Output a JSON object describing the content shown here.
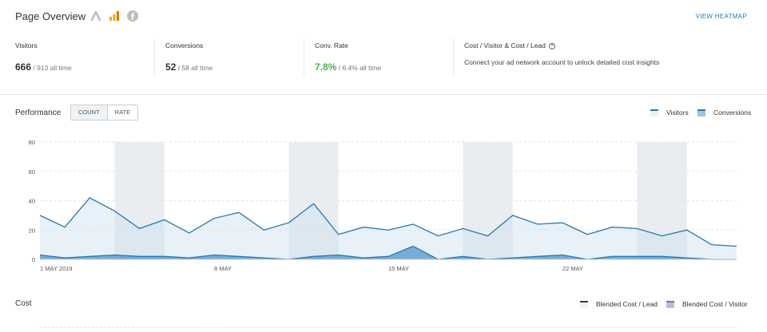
{
  "header": {
    "title": "Page Overview",
    "view_heatmap": "VIEW HEATMAP",
    "icons": [
      "google-ads-icon",
      "analytics-icon",
      "facebook-icon"
    ]
  },
  "stats": [
    {
      "label": "Visitors",
      "value": "666",
      "sub": " / 913 all time"
    },
    {
      "label": "Conversions",
      "value": "52",
      "sub": " / 58 all time"
    },
    {
      "label": "Conv. Rate",
      "value": "7.8%",
      "sub": " / 6.4% all time"
    }
  ],
  "cost": {
    "label": "Cost / Visitor & Cost / Lead",
    "description": "Connect your ad network account to unlock detailed cost insights"
  },
  "performance": {
    "title": "Performance",
    "toggle": [
      "COUNT",
      "RATE"
    ],
    "active_toggle": "COUNT"
  },
  "legend": {
    "visitors": "Visitors",
    "conversions": "Conversions"
  },
  "chart_data": {
    "type": "area",
    "x_start": "1 May 2019",
    "x_ticks": [
      {
        "label": "1 MAY 2019",
        "day": 1
      },
      {
        "label": "8 MAY",
        "day": 8
      },
      {
        "label": "15 MAY",
        "day": 15
      },
      {
        "label": "22 MAY",
        "day": 22
      }
    ],
    "y_ticks": [
      0,
      20,
      40,
      60,
      80
    ],
    "ylim": [
      0,
      80
    ],
    "grid": true,
    "weekend_bands": [
      [
        4,
        6
      ],
      [
        11,
        13
      ],
      [
        18,
        20
      ],
      [
        25,
        27
      ]
    ],
    "series": [
      {
        "name": "Visitors",
        "color": "#2878b0",
        "values": [
          30,
          22,
          42,
          33,
          21,
          27,
          18,
          28,
          32,
          20,
          25,
          38,
          17,
          22,
          20,
          24,
          16,
          21,
          16,
          30,
          24,
          25,
          17,
          22,
          21,
          16,
          20,
          10,
          9
        ]
      },
      {
        "name": "Conversions",
        "color": "#2878b0",
        "values": [
          3,
          1,
          2,
          3,
          2,
          2,
          1,
          3,
          2,
          1,
          0,
          2,
          3,
          1,
          2,
          9,
          0,
          2,
          0,
          1,
          2,
          3,
          0,
          2,
          2,
          2,
          1,
          0,
          0
        ]
      }
    ]
  },
  "cost_section": {
    "title": "Cost",
    "legend": [
      {
        "name": "Blended Cost / Lead",
        "color": "#4a2d5a"
      },
      {
        "name": "Blended Cost / Visitor",
        "color": "#8a6bb0"
      }
    ]
  }
}
